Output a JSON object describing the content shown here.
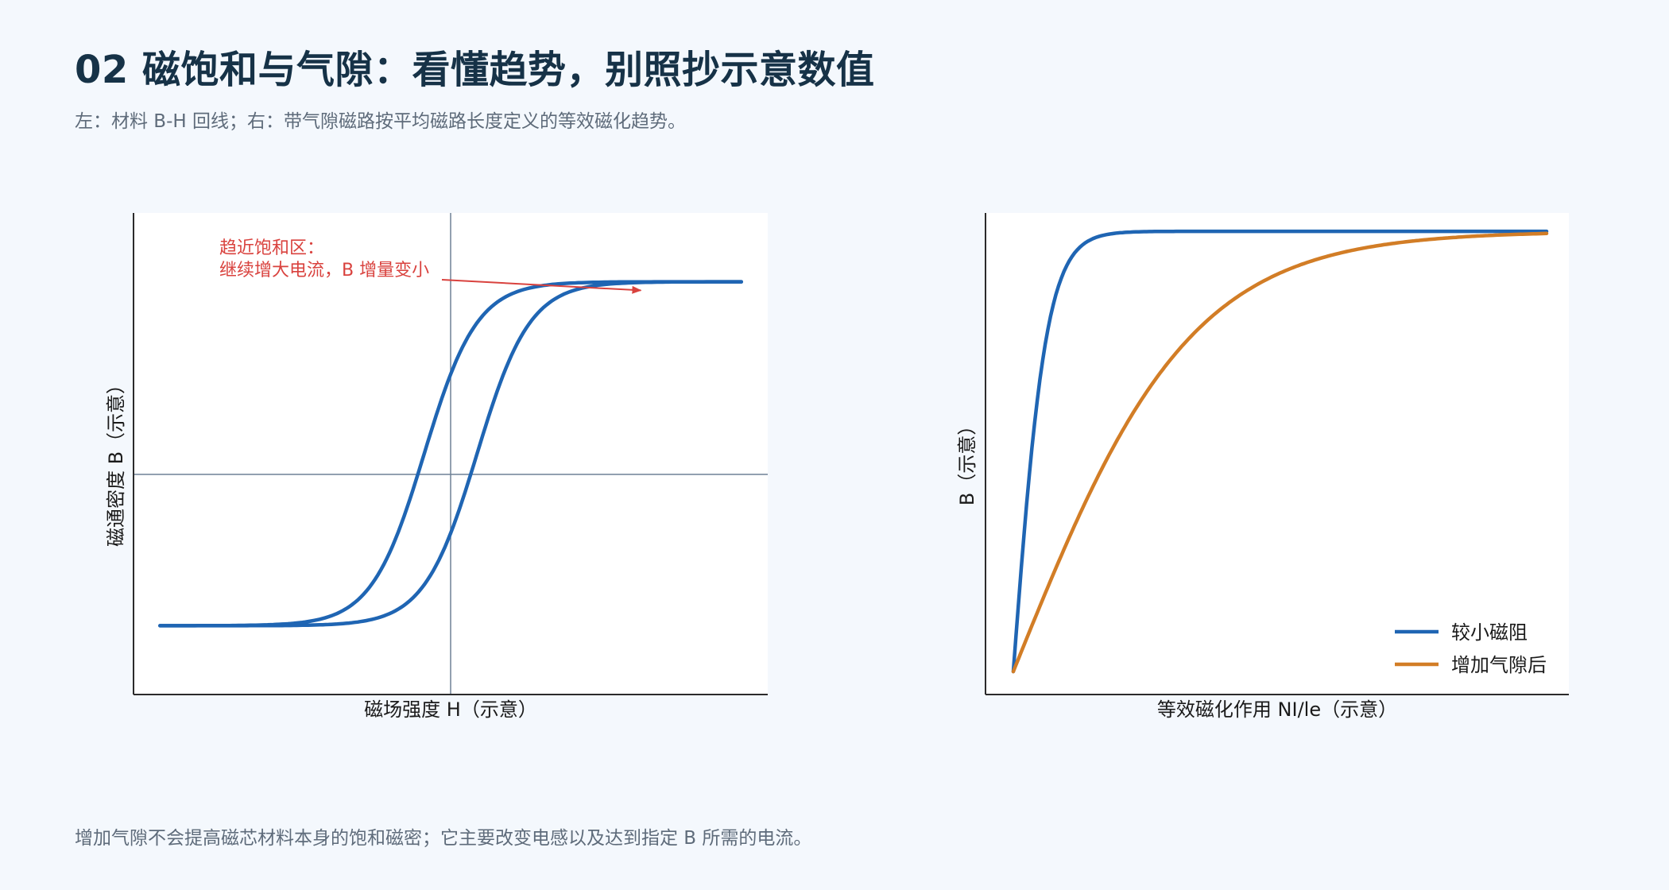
{
  "header": {
    "title": "02  磁饱和与气隙：看懂趋势，别照抄示意数值",
    "subtitle": "左：材料 B-H 回线；右：带气隙磁路按平均磁路长度定义的等效磁化趋势。"
  },
  "footer": {
    "note": "增加气隙不会提高磁芯材料本身的饱和磁密；它主要改变电感以及达到指定 B 所需的电流。"
  },
  "colors": {
    "blue": "#1f65b3",
    "orange": "#d27d26",
    "annotation": "#d9423e",
    "axis": "#2b2b2b",
    "crosshair": "#6e8096"
  },
  "chart_data": [
    {
      "type": "line",
      "title": "",
      "xlabel": "磁场强度 H（示意）",
      "ylabel": "磁通密度 B（示意）",
      "xlim": [
        -6,
        6
      ],
      "ylim": [
        -1.4,
        1.4
      ],
      "grid": false,
      "crosshair": {
        "x": 0,
        "y": 0
      },
      "annotation": {
        "lines": [
          "趋近饱和区：",
          "继续增大电流，B 增量变小"
        ],
        "arrow_to": {
          "x": 3.6,
          "y": 0.95
        }
      },
      "series": [
        {
          "role": "ascending-branch",
          "color": "#1f65b3",
          "Hc": 0.5,
          "Bs": 1.0,
          "a": 1.0,
          "x_range": [
            -5.5,
            5.5
          ]
        },
        {
          "role": "descending-branch",
          "color": "#1f65b3",
          "Hc": -0.5,
          "Bs": 1.0,
          "a": 1.0,
          "x_range": [
            -5.5,
            5.5
          ]
        }
      ]
    },
    {
      "type": "line",
      "title": "",
      "xlabel": "等效磁化作用 NI/le（示意）",
      "ylabel": "B（示意）",
      "xlim": [
        -0.05,
        1.0
      ],
      "ylim": [
        -0.05,
        1.0
      ],
      "grid": false,
      "legend": "bottom-right",
      "series": [
        {
          "name": "较小磁阻",
          "color": "#1f65b3",
          "k": 16,
          "Bs": 0.96,
          "x_range": [
            0,
            0.96
          ]
        },
        {
          "name": "增加气隙后",
          "color": "#d27d26",
          "k": 3.0,
          "Bs": 0.96,
          "x_range": [
            0,
            0.96
          ]
        }
      ]
    }
  ]
}
